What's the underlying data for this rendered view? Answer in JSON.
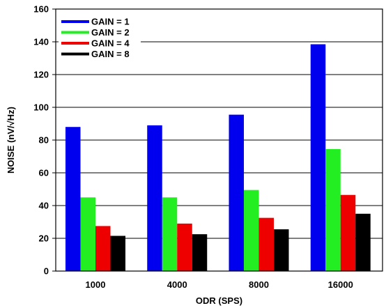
{
  "chart_data": {
    "type": "bar",
    "title": "",
    "xlabel": "ODR (SPS)",
    "ylabel": "NOISE (nV/√Hz)",
    "categories": [
      "1000",
      "4000",
      "8000",
      "16000"
    ],
    "ylim": [
      0,
      160
    ],
    "yticks": [
      0,
      20,
      40,
      60,
      80,
      100,
      120,
      140,
      160
    ],
    "grid": {
      "horizontal": true,
      "vertical": false
    },
    "legend_position": "top-left",
    "series": [
      {
        "name": "GAIN = 1",
        "color": "#0000ee",
        "values": [
          88,
          89,
          95.5,
          138.5
        ]
      },
      {
        "name": "GAIN = 2",
        "color": "#22ee22",
        "values": [
          45,
          45,
          49.5,
          74.5
        ]
      },
      {
        "name": "GAIN = 4",
        "color": "#ee0000",
        "values": [
          27.5,
          29,
          32.5,
          46.5
        ]
      },
      {
        "name": "GAIN = 8",
        "color": "#000000",
        "values": [
          21.5,
          22.5,
          25.5,
          35
        ]
      }
    ]
  }
}
